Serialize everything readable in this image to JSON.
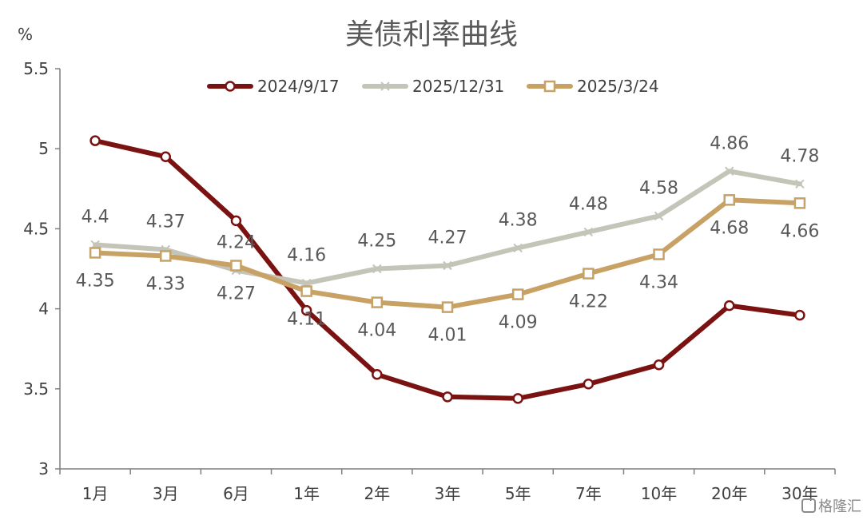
{
  "chart_data": {
    "type": "line",
    "title": "美债利率曲线",
    "unit_label": "%",
    "categories": [
      "1月",
      "3月",
      "6月",
      "1年",
      "2年",
      "3年",
      "5年",
      "7年",
      "10年",
      "20年",
      "30年"
    ],
    "ylim": [
      3,
      5.5
    ],
    "yticks": [
      "3",
      "3.5",
      "4",
      "4.5",
      "5",
      "5.5"
    ],
    "grid": false,
    "legend_position": "top",
    "series": [
      {
        "name": "2024/9/17",
        "color": "#7B1212",
        "marker": "circle",
        "values": [
          5.05,
          4.95,
          4.55,
          3.99,
          3.59,
          3.45,
          3.44,
          3.53,
          3.65,
          4.02,
          3.96
        ],
        "show_labels": false
      },
      {
        "name": "2025/12/31",
        "color": "#C4C4B8",
        "marker": "x",
        "values": [
          4.4,
          4.37,
          4.24,
          4.16,
          4.25,
          4.27,
          4.38,
          4.48,
          4.58,
          4.86,
          4.78
        ],
        "labels": [
          "4.4",
          "4.37",
          "4.24",
          "4.16",
          "4.25",
          "4.27",
          "4.38",
          "4.48",
          "4.58",
          "4.86",
          "4.78"
        ],
        "show_labels": true
      },
      {
        "name": "2025/3/24",
        "color": "#C8A164",
        "marker": "square",
        "values": [
          4.35,
          4.33,
          4.27,
          4.11,
          4.04,
          4.01,
          4.09,
          4.22,
          4.34,
          4.68,
          4.66
        ],
        "labels": [
          "4.35",
          "4.33",
          "4.27",
          "4.11",
          "4.04",
          "4.01",
          "4.09",
          "4.22",
          "4.34",
          "4.68",
          "4.66"
        ],
        "show_labels": true
      }
    ]
  },
  "watermark": "格隆汇"
}
